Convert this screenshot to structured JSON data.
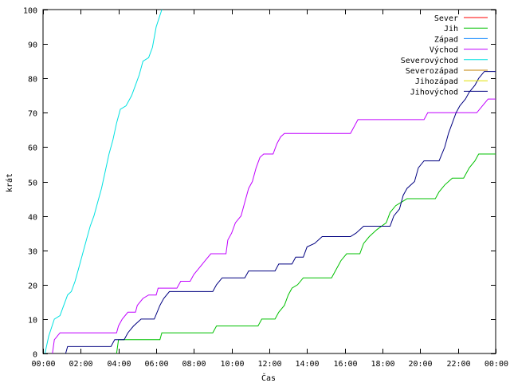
{
  "chart_data": {
    "type": "line",
    "title": "",
    "xlabel": "Čas",
    "ylabel": "krát",
    "xlim": [
      0,
      24
    ],
    "ylim": [
      0,
      100
    ],
    "x_ticks": [
      0,
      2,
      4,
      6,
      8,
      10,
      12,
      14,
      16,
      18,
      20,
      22,
      24
    ],
    "x_tick_labels": [
      "00:00",
      "02:00",
      "04:00",
      "06:00",
      "08:00",
      "10:00",
      "12:00",
      "14:00",
      "16:00",
      "18:00",
      "20:00",
      "22:00",
      "00:00"
    ],
    "y_ticks": [
      0,
      10,
      20,
      30,
      40,
      50,
      60,
      70,
      80,
      90,
      100
    ],
    "y_tick_labels": [
      "0",
      "10",
      "20",
      "30",
      "40",
      "50",
      "60",
      "70",
      "80",
      "90",
      "100"
    ],
    "grid": false,
    "legend_position": "top-right",
    "series": [
      {
        "name": "Sever",
        "color": "#ff0000",
        "points": []
      },
      {
        "name": "Jih",
        "color": "#00c000",
        "points": [
          [
            3.9,
            0
          ],
          [
            4.0,
            4
          ],
          [
            6.2,
            4
          ],
          [
            6.3,
            6
          ],
          [
            9.0,
            6
          ],
          [
            9.2,
            8
          ],
          [
            11.4,
            8
          ],
          [
            11.6,
            10
          ],
          [
            12.3,
            10
          ],
          [
            12.5,
            12
          ],
          [
            12.8,
            14
          ],
          [
            13.0,
            17
          ],
          [
            13.2,
            19
          ],
          [
            13.5,
            20
          ],
          [
            13.8,
            22
          ],
          [
            15.3,
            22
          ],
          [
            15.5,
            24
          ],
          [
            15.8,
            27
          ],
          [
            16.1,
            29
          ],
          [
            16.8,
            29
          ],
          [
            17.0,
            32
          ],
          [
            17.3,
            34
          ],
          [
            17.7,
            36
          ],
          [
            18.2,
            38
          ],
          [
            18.4,
            41
          ],
          [
            18.7,
            43
          ],
          [
            19.0,
            44
          ],
          [
            19.3,
            45
          ],
          [
            20.8,
            45
          ],
          [
            21.0,
            47
          ],
          [
            21.3,
            49
          ],
          [
            21.7,
            51
          ],
          [
            22.3,
            51
          ],
          [
            22.6,
            54
          ],
          [
            22.9,
            56
          ],
          [
            23.1,
            58
          ],
          [
            24.0,
            58
          ]
        ]
      },
      {
        "name": "Západ",
        "color": "#0080ff",
        "points": []
      },
      {
        "name": "Východ",
        "color": "#c000ff",
        "points": [
          [
            0.5,
            0
          ],
          [
            0.6,
            4
          ],
          [
            0.9,
            6
          ],
          [
            3.9,
            6
          ],
          [
            4.0,
            8
          ],
          [
            4.2,
            10
          ],
          [
            4.5,
            12
          ],
          [
            4.9,
            12
          ],
          [
            5.0,
            14
          ],
          [
            5.3,
            16
          ],
          [
            5.6,
            17
          ],
          [
            6.0,
            17
          ],
          [
            6.1,
            19
          ],
          [
            7.1,
            19
          ],
          [
            7.3,
            21
          ],
          [
            7.8,
            21
          ],
          [
            8.0,
            23
          ],
          [
            8.3,
            25
          ],
          [
            8.6,
            27
          ],
          [
            8.9,
            29
          ],
          [
            9.7,
            29
          ],
          [
            9.8,
            33
          ],
          [
            10.0,
            35
          ],
          [
            10.2,
            38
          ],
          [
            10.5,
            40
          ],
          [
            10.7,
            44
          ],
          [
            10.9,
            48
          ],
          [
            11.1,
            50
          ],
          [
            11.3,
            54
          ],
          [
            11.5,
            57
          ],
          [
            11.7,
            58
          ],
          [
            12.2,
            58
          ],
          [
            12.4,
            61
          ],
          [
            12.6,
            63
          ],
          [
            12.8,
            64
          ],
          [
            16.3,
            64
          ],
          [
            16.5,
            66
          ],
          [
            16.7,
            68
          ],
          [
            20.2,
            68
          ],
          [
            20.4,
            70
          ],
          [
            23.0,
            70
          ],
          [
            23.3,
            72
          ],
          [
            23.6,
            74
          ],
          [
            24.0,
            74
          ]
        ]
      },
      {
        "name": "Severovýchod",
        "color": "#00e0e0",
        "points": [
          [
            0.1,
            0
          ],
          [
            0.3,
            5
          ],
          [
            0.6,
            10
          ],
          [
            0.9,
            11
          ],
          [
            1.1,
            14
          ],
          [
            1.3,
            17
          ],
          [
            1.5,
            18
          ],
          [
            1.7,
            21
          ],
          [
            1.9,
            25
          ],
          [
            2.1,
            29
          ],
          [
            2.3,
            33
          ],
          [
            2.5,
            37
          ],
          [
            2.7,
            40
          ],
          [
            2.9,
            44
          ],
          [
            3.1,
            48
          ],
          [
            3.3,
            53
          ],
          [
            3.5,
            58
          ],
          [
            3.7,
            62
          ],
          [
            3.9,
            67
          ],
          [
            4.1,
            71
          ],
          [
            4.4,
            72
          ],
          [
            4.7,
            75
          ],
          [
            4.9,
            78
          ],
          [
            5.1,
            81
          ],
          [
            5.3,
            85
          ],
          [
            5.6,
            86
          ],
          [
            5.8,
            89
          ],
          [
            6.0,
            95
          ],
          [
            6.3,
            100
          ]
        ]
      },
      {
        "name": "Severozápad",
        "color": "#c08000",
        "points": []
      },
      {
        "name": "Jihozápad",
        "color": "#e0e000",
        "points": []
      },
      {
        "name": "Jihovýchod",
        "color": "#000080",
        "points": [
          [
            1.2,
            0
          ],
          [
            1.3,
            2
          ],
          [
            3.6,
            2
          ],
          [
            3.8,
            4
          ],
          [
            4.3,
            4
          ],
          [
            4.5,
            6
          ],
          [
            4.8,
            8
          ],
          [
            5.2,
            10
          ],
          [
            5.9,
            10
          ],
          [
            6.2,
            14
          ],
          [
            6.4,
            16
          ],
          [
            6.7,
            18
          ],
          [
            9.0,
            18
          ],
          [
            9.2,
            20
          ],
          [
            9.5,
            22
          ],
          [
            10.7,
            22
          ],
          [
            10.9,
            24
          ],
          [
            12.3,
            24
          ],
          [
            12.5,
            26
          ],
          [
            13.2,
            26
          ],
          [
            13.4,
            28
          ],
          [
            13.8,
            28
          ],
          [
            14.0,
            31
          ],
          [
            14.4,
            32
          ],
          [
            14.8,
            34
          ],
          [
            16.3,
            34
          ],
          [
            16.6,
            35
          ],
          [
            17.0,
            37
          ],
          [
            18.4,
            37
          ],
          [
            18.6,
            40
          ],
          [
            18.9,
            42
          ],
          [
            19.1,
            46
          ],
          [
            19.3,
            48
          ],
          [
            19.7,
            50
          ],
          [
            19.9,
            54
          ],
          [
            20.2,
            56
          ],
          [
            21.0,
            56
          ],
          [
            21.3,
            60
          ],
          [
            21.5,
            64
          ],
          [
            21.7,
            67
          ],
          [
            21.9,
            70
          ],
          [
            22.1,
            72
          ],
          [
            22.4,
            74
          ],
          [
            22.6,
            76
          ],
          [
            22.9,
            78
          ],
          [
            23.1,
            80
          ],
          [
            23.4,
            82
          ],
          [
            24.0,
            82
          ]
        ]
      }
    ]
  }
}
